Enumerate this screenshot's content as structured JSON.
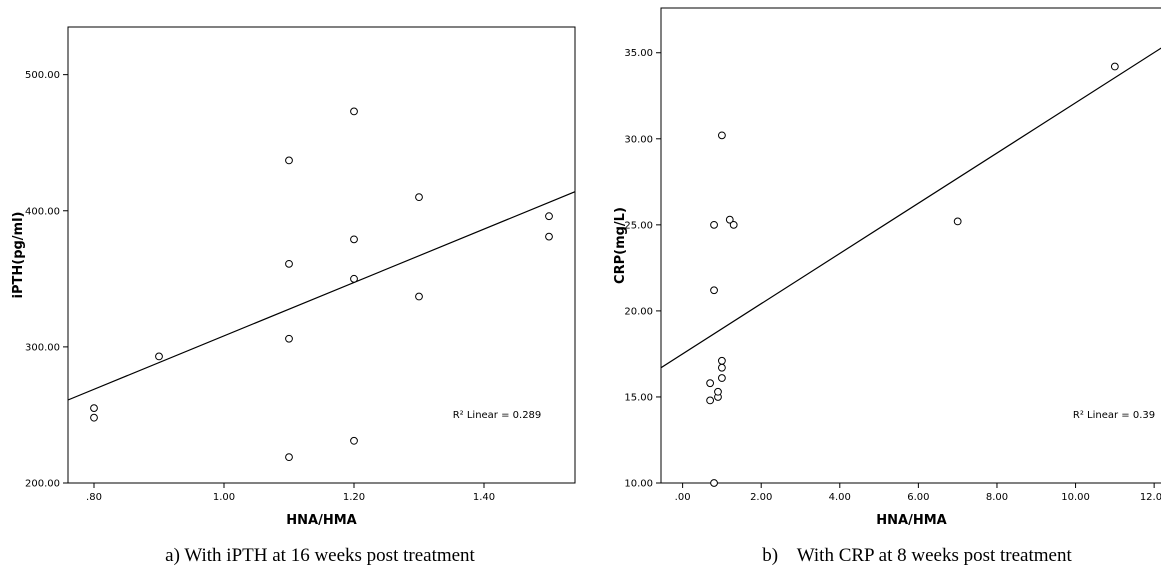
{
  "chart_data": [
    {
      "type": "scatter",
      "panel_caption": "a) With iPTH at 16 weeks post treatment",
      "xlabel": "HNA/HMA",
      "ylabel": "iPTH(pg/ml)",
      "xlim": [
        0.76,
        1.54
      ],
      "ylim": [
        200,
        535
      ],
      "xticks": [
        0.8,
        1.0,
        1.2,
        1.4
      ],
      "xtick_labels": [
        ".80",
        "1.00",
        "1.20",
        "1.40"
      ],
      "yticks": [
        200,
        300,
        400,
        500
      ],
      "ytick_labels": [
        "200.00",
        "300.00",
        "400.00",
        "500.00"
      ],
      "points": [
        {
          "x": 0.8,
          "y": 255
        },
        {
          "x": 0.8,
          "y": 248
        },
        {
          "x": 0.9,
          "y": 293
        },
        {
          "x": 1.1,
          "y": 437
        },
        {
          "x": 1.1,
          "y": 361
        },
        {
          "x": 1.1,
          "y": 306
        },
        {
          "x": 1.1,
          "y": 219
        },
        {
          "x": 1.2,
          "y": 473
        },
        {
          "x": 1.2,
          "y": 379
        },
        {
          "x": 1.2,
          "y": 350
        },
        {
          "x": 1.2,
          "y": 231
        },
        {
          "x": 1.3,
          "y": 410
        },
        {
          "x": 1.3,
          "y": 337
        },
        {
          "x": 1.5,
          "y": 396
        },
        {
          "x": 1.5,
          "y": 381
        }
      ],
      "fit_line": {
        "x": [
          0.76,
          1.54
        ],
        "y": [
          261,
          414
        ]
      },
      "annotation": "R² Linear = 0.289",
      "grid": false
    },
    {
      "type": "scatter",
      "panel_caption": "b)    With CRP at 8 weeks post treatment",
      "xlabel": "HNA/HMA",
      "ylabel": "CRP(mg/L)",
      "xlim": [
        -0.55,
        12.2
      ],
      "ylim": [
        10,
        37.6
      ],
      "xticks": [
        0,
        2,
        4,
        6,
        8,
        10,
        12
      ],
      "xtick_labels": [
        ".00",
        "2.00",
        "4.00",
        "6.00",
        "8.00",
        "10.00",
        "12.00"
      ],
      "yticks": [
        10,
        15,
        20,
        25,
        30,
        35
      ],
      "ytick_labels": [
        "10.00",
        "15.00",
        "20.00",
        "25.00",
        "30.00",
        "35.00"
      ],
      "points": [
        {
          "x": 0.8,
          "y": 10.0
        },
        {
          "x": 0.7,
          "y": 14.8
        },
        {
          "x": 0.7,
          "y": 15.8
        },
        {
          "x": 0.9,
          "y": 15.0
        },
        {
          "x": 0.9,
          "y": 15.3
        },
        {
          "x": 1.0,
          "y": 16.1
        },
        {
          "x": 1.0,
          "y": 16.7
        },
        {
          "x": 1.0,
          "y": 17.1
        },
        {
          "x": 0.8,
          "y": 21.2
        },
        {
          "x": 0.8,
          "y": 25.0
        },
        {
          "x": 1.0,
          "y": 30.2
        },
        {
          "x": 1.2,
          "y": 25.3
        },
        {
          "x": 1.3,
          "y": 25.0
        },
        {
          "x": 7.0,
          "y": 25.2
        },
        {
          "x": 11.0,
          "y": 34.2
        }
      ],
      "fit_line": {
        "x": [
          -0.55,
          12.2
        ],
        "y": [
          16.7,
          35.3
        ]
      },
      "annotation": "R² Linear = 0.39",
      "grid": false
    }
  ]
}
